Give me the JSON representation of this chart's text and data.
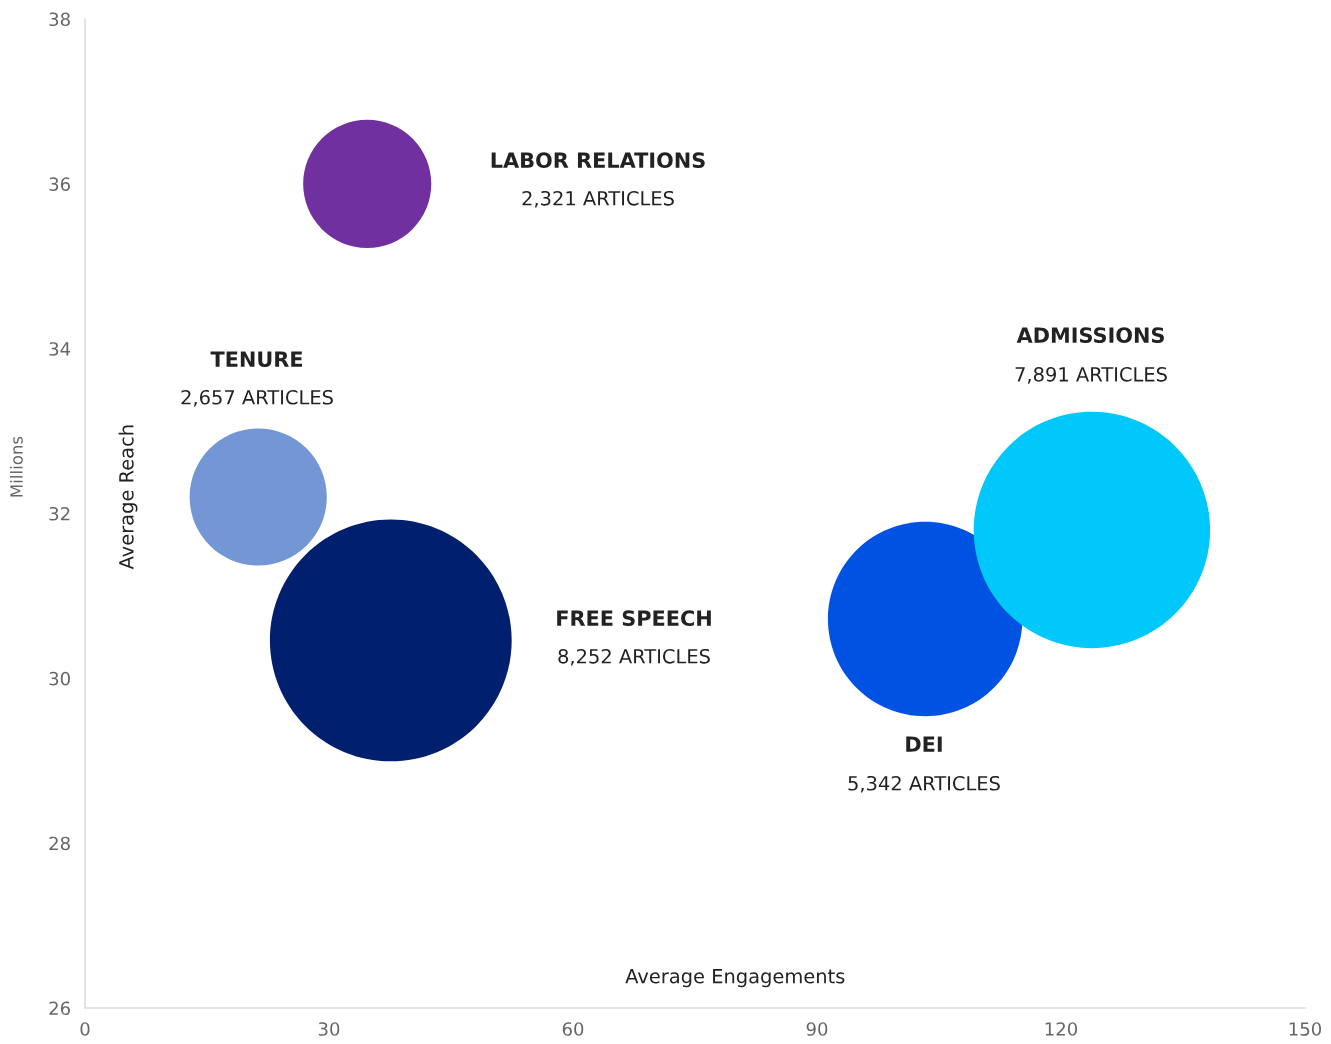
{
  "chart_data": {
    "type": "bubble",
    "xlabel": "Average Engagements",
    "ylabel": "Average Reach",
    "xlim": [
      0,
      150
    ],
    "xticks": [
      0,
      30,
      60,
      90,
      120,
      150
    ],
    "ylim": [
      26,
      38
    ],
    "yticks": [
      26,
      28,
      30,
      32,
      34,
      36,
      38
    ],
    "marker": "circle",
    "grid": false,
    "series": [
      {
        "x": [
          34.7,
          21.3,
          37.6,
          103.3,
          123.8
        ],
        "values": [
          36.0,
          32.2,
          30.46,
          30.72,
          31.8
        ],
        "sizes": [
          0.281,
          0.322,
          1,
          0.647,
          0.956
        ],
        "colors": [
          "#7030a0",
          "#7396d4",
          "#001f6e",
          "#0052e3",
          "#00c8fa"
        ]
      }
    ],
    "annotations": [
      "Millions",
      "LABOR RELATIONS",
      "2,321 ARTICLES",
      "TENURE",
      "2,657 ARTICLES",
      "FREE SPEECH",
      "8,252 ARTICLES",
      "DEI",
      "5,342 ARTICLES",
      "ADMISSIONS",
      "7,891 ARTICLES"
    ]
  }
}
